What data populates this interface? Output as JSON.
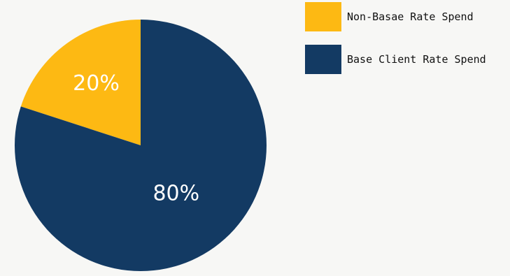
{
  "chart_data": {
    "type": "pie",
    "title": "",
    "categories": [
      "Non-Basae Rate Spend",
      "Base Client Rate Spend"
    ],
    "values": [
      20,
      80
    ],
    "labels": [
      "20%",
      "80%"
    ],
    "colors": [
      "#fdb913",
      "#133a63"
    ],
    "legend": {
      "placement": "top-right",
      "entries": [
        "Non-Basae Rate Spend",
        "Base Client Rate Spend"
      ]
    }
  }
}
